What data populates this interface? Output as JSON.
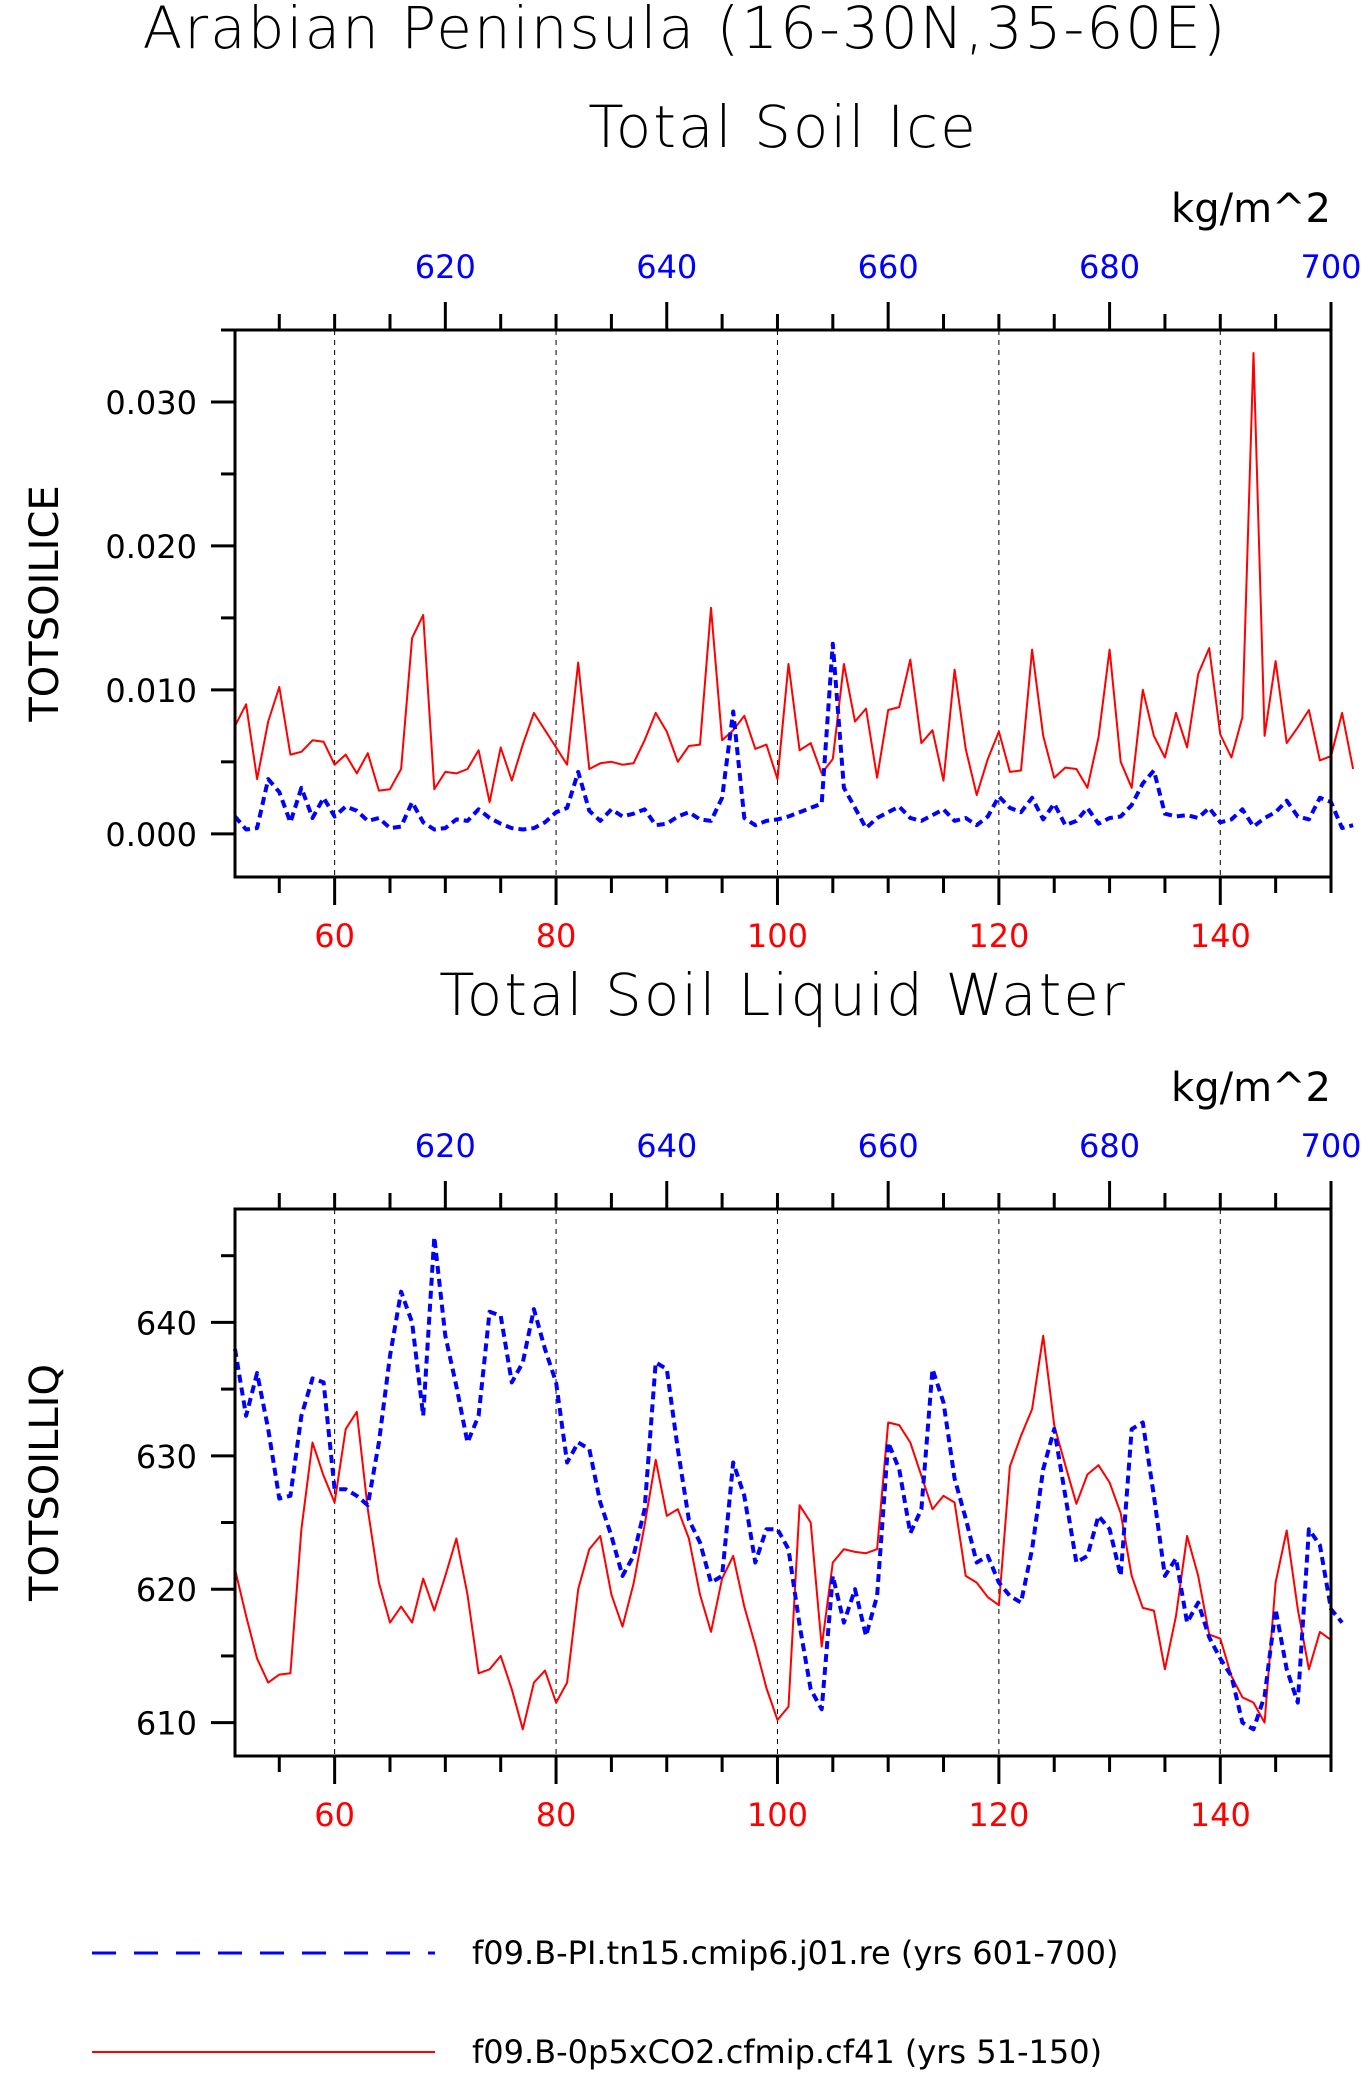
{
  "figure": {
    "title_line1": "Arabian Peninsula (16-30N,35-60E)",
    "title_line2": "Total Soil Ice",
    "colors": {
      "blue": "#0000ff",
      "red": "#ff0000",
      "axis": "#000000"
    }
  },
  "chart_data": [
    {
      "type": "line",
      "title": "Total Soil Ice",
      "ylabel": "TOTSOILICE",
      "units": "kg/m^2",
      "ylim": [
        -0.003,
        0.035
      ],
      "yticks": [
        0.0,
        0.01,
        0.02,
        0.03
      ],
      "ytick_labels": [
        "0.000",
        "0.010",
        "0.020",
        "0.030"
      ],
      "bottom_axis": {
        "range": [
          51,
          150
        ],
        "ticks": [
          60,
          80,
          100,
          120,
          140
        ],
        "labels": [
          "60",
          "80",
          "100",
          "120",
          "140"
        ],
        "color": "#ff0000"
      },
      "top_axis": {
        "range": [
          601,
          700
        ],
        "ticks": [
          620,
          640,
          660,
          680,
          700
        ],
        "labels": [
          "620",
          "640",
          "660",
          "680",
          "700"
        ],
        "color": "#0000ff"
      },
      "grid_x": [
        60,
        80,
        100,
        120,
        140
      ],
      "series": [
        {
          "name": "f09.B-0p5xCO2.cfmip.cf41 (yrs 51-150)",
          "color": "#ff0000",
          "style": "solid",
          "x_start": 51,
          "values": [
            0.0075,
            0.009,
            0.0038,
            0.0078,
            0.0102,
            0.0055,
            0.0057,
            0.0065,
            0.0064,
            0.0048,
            0.0055,
            0.0042,
            0.0056,
            0.003,
            0.0031,
            0.0045,
            0.0136,
            0.0152,
            0.0031,
            0.0043,
            0.0042,
            0.0045,
            0.0058,
            0.0022,
            0.006,
            0.0037,
            0.0062,
            0.0084,
            0.0072,
            0.006,
            0.0048,
            0.0119,
            0.0045,
            0.0049,
            0.005,
            0.0048,
            0.0049,
            0.0065,
            0.0084,
            0.0071,
            0.005,
            0.0061,
            0.0062,
            0.0157,
            0.0065,
            0.0072,
            0.0082,
            0.0059,
            0.0062,
            0.0038,
            0.0118,
            0.0058,
            0.0063,
            0.0042,
            0.0052,
            0.0118,
            0.0078,
            0.0087,
            0.0039,
            0.0086,
            0.0088,
            0.0121,
            0.0063,
            0.0072,
            0.0037,
            0.0114,
            0.0059,
            0.0027,
            0.0052,
            0.0071,
            0.0043,
            0.0044,
            0.0128,
            0.0068,
            0.0039,
            0.0046,
            0.0045,
            0.0032,
            0.0067,
            0.0128,
            0.005,
            0.0032,
            0.01,
            0.0068,
            0.0053,
            0.0084,
            0.006,
            0.0111,
            0.0129,
            0.0069,
            0.0053,
            0.0081,
            0.0334,
            0.0068,
            0.012,
            0.0063,
            0.0074,
            0.0086,
            0.0051,
            0.0054,
            0.0084,
            0.0045
          ]
        },
        {
          "name": "f09.B-PI.tn15.cmip6.j01.re (yrs 601-700)",
          "color": "#0000ff",
          "style": "dashed",
          "x_start": 601,
          "values": [
            0.0012,
            0.0003,
            0.0004,
            0.0038,
            0.0029,
            0.0008,
            0.0032,
            0.0011,
            0.0025,
            0.0012,
            0.0019,
            0.0016,
            0.0009,
            0.0011,
            0.0004,
            0.0005,
            0.0022,
            0.0008,
            0.0003,
            0.0004,
            0.001,
            0.0009,
            0.0017,
            0.0011,
            0.0007,
            0.0004,
            0.0003,
            0.0004,
            0.0008,
            0.0015,
            0.0018,
            0.0043,
            0.0016,
            0.0009,
            0.0017,
            0.0012,
            0.0014,
            0.0017,
            0.0006,
            0.0007,
            0.0012,
            0.0015,
            0.001,
            0.0009,
            0.0025,
            0.0085,
            0.0011,
            0.0006,
            0.0009,
            0.001,
            0.0012,
            0.0015,
            0.0018,
            0.0021,
            0.0132,
            0.0032,
            0.0018,
            0.0004,
            0.0011,
            0.0015,
            0.0019,
            0.0011,
            0.0009,
            0.0013,
            0.0017,
            0.0009,
            0.0011,
            0.0006,
            0.0012,
            0.0026,
            0.0018,
            0.0015,
            0.0025,
            0.001,
            0.0021,
            0.0006,
            0.0009,
            0.0018,
            0.0007,
            0.0011,
            0.0012,
            0.002,
            0.0035,
            0.0044,
            0.0014,
            0.0012,
            0.0013,
            0.0011,
            0.0018,
            0.0008,
            0.001,
            0.0017,
            0.0005,
            0.0011,
            0.0015,
            0.0023,
            0.0012,
            0.001,
            0.0025,
            0.0022,
            0.0004,
            0.0006
          ]
        }
      ]
    },
    {
      "type": "line",
      "title": "Total Soil Liquid Water",
      "ylabel": "TOTSOILLIQ",
      "units": "kg/m^2",
      "ylim": [
        607.5,
        648.5
      ],
      "yticks": [
        610,
        620,
        630,
        640
      ],
      "ytick_labels": [
        "610",
        "620",
        "630",
        "640"
      ],
      "bottom_axis": {
        "range": [
          51,
          150
        ],
        "ticks": [
          60,
          80,
          100,
          120,
          140
        ],
        "labels": [
          "60",
          "80",
          "100",
          "120",
          "140"
        ],
        "color": "#ff0000"
      },
      "top_axis": {
        "range": [
          601,
          700
        ],
        "ticks": [
          620,
          640,
          660,
          680,
          700
        ],
        "labels": [
          "620",
          "640",
          "660",
          "680",
          "700"
        ],
        "color": "#0000ff"
      },
      "grid_x": [
        60,
        80,
        100,
        120,
        140
      ],
      "series": [
        {
          "name": "f09.B-0p5xCO2.cfmip.cf41 (yrs 51-150)",
          "color": "#ff0000",
          "style": "solid",
          "x_start": 51,
          "values": [
            621.5,
            618,
            614.8,
            613,
            613.6,
            613.7,
            624.5,
            631,
            628.5,
            626.5,
            632,
            633.3,
            626,
            620.5,
            617.5,
            618.7,
            617.5,
            620.8,
            618.4,
            621,
            623.8,
            619.6,
            613.7,
            614,
            615,
            612.5,
            609.5,
            613,
            613.9,
            611.5,
            613,
            620,
            623,
            624,
            619.6,
            617.2,
            620.4,
            624.8,
            629.7,
            625.5,
            626,
            623.8,
            619.6,
            616.8,
            620.8,
            622.5,
            618.7,
            615.8,
            612.6,
            610.2,
            611.2,
            626.3,
            625,
            615.7,
            622,
            623,
            622.8,
            622.7,
            623,
            632.5,
            632.3,
            631,
            628.5,
            626,
            627,
            626.5,
            621,
            620.5,
            619.4,
            618.8,
            629.2,
            631.5,
            633.5,
            639,
            632.3,
            629.3,
            626.4,
            628.6,
            629.3,
            628,
            625.7,
            621,
            618.6,
            618.4,
            614,
            618,
            624,
            621,
            616.6,
            616.3,
            613.5,
            611.9,
            611.5,
            610,
            620.5,
            624.4,
            618.5,
            614,
            616.8,
            616.2
          ]
        },
        {
          "name": "f09.B-PI.tn15.cmip6.j01.re (yrs 601-700)",
          "color": "#0000ff",
          "style": "dashed",
          "x_start": 601,
          "values": [
            638,
            633,
            636.2,
            632,
            626.8,
            627,
            633,
            635.8,
            635.5,
            627.5,
            627.5,
            627,
            626.3,
            631,
            637.5,
            642.3,
            640,
            633,
            646.4,
            639,
            635.2,
            631,
            633,
            640.8,
            640.5,
            635.5,
            637,
            641,
            638,
            635.5,
            629.5,
            631,
            630.5,
            626.5,
            624,
            621,
            622.5,
            626,
            637,
            636.5,
            630.5,
            625.2,
            623.5,
            620.5,
            621,
            629.5,
            627,
            622,
            624.5,
            624.5,
            623,
            617.3,
            612.5,
            611,
            621,
            617.5,
            620,
            616.5,
            619.5,
            631,
            629,
            624.2,
            626,
            636.5,
            634,
            628.3,
            625.3,
            622,
            622.5,
            620.5,
            619.5,
            619,
            623,
            629,
            632,
            627,
            622,
            622.5,
            625.5,
            624.5,
            621,
            632,
            632.5,
            627,
            621,
            622.3,
            617.5,
            619,
            616.4,
            614.8,
            613.5,
            610,
            609.5,
            612,
            618.5,
            614,
            611.5,
            624.5,
            623.3,
            618.5,
            617.5
          ]
        }
      ]
    }
  ],
  "legend": {
    "items": [
      {
        "label": "f09.B-PI.tn15.cmip6.j01.re (yrs 601-700)",
        "color": "#0000ff",
        "style": "dashed"
      },
      {
        "label": "f09.B-0p5xCO2.cfmip.cf41 (yrs 51-150)",
        "color": "#ff0000",
        "style": "solid"
      }
    ]
  }
}
